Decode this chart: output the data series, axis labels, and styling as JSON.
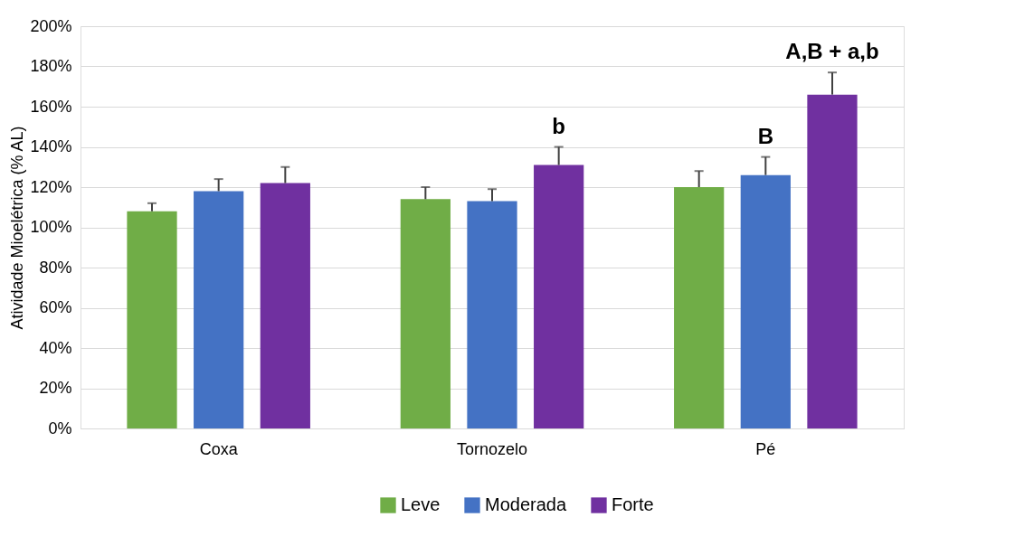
{
  "chart_data": {
    "type": "bar",
    "ylabel": "Atividade Mioelétrica (% AL)",
    "categories": [
      "Coxa",
      "Tornozelo",
      "Pé"
    ],
    "series": [
      {
        "name": "Leve",
        "color": "#70ad47",
        "values": [
          108,
          114,
          120
        ],
        "errors": [
          [
            108,
            112
          ],
          [
            114,
            120
          ],
          [
            120,
            128
          ]
        ]
      },
      {
        "name": "Moderada",
        "color": "#4472c4",
        "values": [
          118,
          113,
          126
        ],
        "errors": [
          [
            118,
            124
          ],
          [
            113,
            119
          ],
          [
            126,
            135
          ]
        ],
        "value_labels": [
          null,
          null,
          "B"
        ]
      },
      {
        "name": "Forte",
        "color": "#7030a0",
        "values": [
          122,
          131,
          166
        ],
        "errors": [
          [
            122,
            130
          ],
          [
            131,
            140
          ],
          [
            166,
            177
          ]
        ],
        "value_labels": [
          null,
          "b",
          "A,B + a,b"
        ]
      }
    ],
    "ylim": [
      0,
      200
    ],
    "yticks": [
      {
        "value": 0,
        "label": "0%"
      },
      {
        "value": 20,
        "label": "20%"
      },
      {
        "value": 40,
        "label": "40%"
      },
      {
        "value": 60,
        "label": "60%"
      },
      {
        "value": 80,
        "label": "80%"
      },
      {
        "value": 100,
        "label": "100%"
      },
      {
        "value": 120,
        "label": "120%"
      },
      {
        "value": 140,
        "label": "140%"
      },
      {
        "value": 160,
        "label": "160%"
      },
      {
        "value": 180,
        "label": "180%"
      },
      {
        "value": 200,
        "label": "200%"
      }
    ],
    "grid": "y",
    "legend": "bottom"
  }
}
